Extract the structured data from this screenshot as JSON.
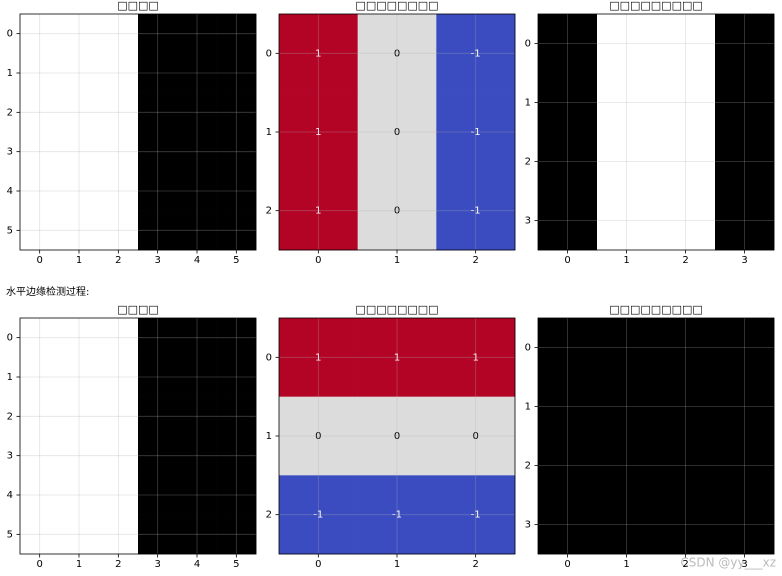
{
  "chart_data": [
    {
      "type": "heatmap",
      "title": "□□□□",
      "cmap": [
        "#000000",
        "#ffffff"
      ],
      "xticks": [
        0,
        1,
        2,
        3,
        4,
        5
      ],
      "yticks": [
        0,
        1,
        2,
        3,
        4,
        5
      ],
      "annotate": false,
      "values": [
        [
          10,
          10,
          10,
          0,
          0,
          0
        ],
        [
          10,
          10,
          10,
          0,
          0,
          0
        ],
        [
          10,
          10,
          10,
          0,
          0,
          0
        ],
        [
          10,
          10,
          10,
          0,
          0,
          0
        ],
        [
          10,
          10,
          10,
          0,
          0,
          0
        ],
        [
          10,
          10,
          10,
          0,
          0,
          0
        ]
      ]
    },
    {
      "type": "heatmap",
      "title": "□□□□□□□□",
      "cmap": [
        "#3b4cc0",
        "#dddcdc",
        "#b40426"
      ],
      "xticks": [
        0,
        1,
        2
      ],
      "yticks": [
        0,
        1,
        2
      ],
      "annotate": true,
      "values": [
        [
          1,
          0,
          -1
        ],
        [
          1,
          0,
          -1
        ],
        [
          1,
          0,
          -1
        ]
      ]
    },
    {
      "type": "heatmap",
      "title": "□□□□□□□□□",
      "cmap": [
        "#000000",
        "#ffffff"
      ],
      "xticks": [
        0,
        1,
        2,
        3
      ],
      "yticks": [
        0,
        1,
        2,
        3
      ],
      "annotate": false,
      "values": [
        [
          0,
          30,
          30,
          0
        ],
        [
          0,
          30,
          30,
          0
        ],
        [
          0,
          30,
          30,
          0
        ],
        [
          0,
          30,
          30,
          0
        ]
      ]
    },
    {
      "type": "heatmap",
      "title": "□□□□",
      "cmap": [
        "#000000",
        "#ffffff"
      ],
      "xticks": [
        0,
        1,
        2,
        3,
        4,
        5
      ],
      "yticks": [
        0,
        1,
        2,
        3,
        4,
        5
      ],
      "annotate": false,
      "values": [
        [
          10,
          10,
          10,
          0,
          0,
          0
        ],
        [
          10,
          10,
          10,
          0,
          0,
          0
        ],
        [
          10,
          10,
          10,
          0,
          0,
          0
        ],
        [
          10,
          10,
          10,
          0,
          0,
          0
        ],
        [
          10,
          10,
          10,
          0,
          0,
          0
        ],
        [
          10,
          10,
          10,
          0,
          0,
          0
        ]
      ]
    },
    {
      "type": "heatmap",
      "title": "□□□□□□□□",
      "cmap": [
        "#3b4cc0",
        "#dddcdc",
        "#b40426"
      ],
      "xticks": [
        0,
        1,
        2
      ],
      "yticks": [
        0,
        1,
        2
      ],
      "annotate": true,
      "values": [
        [
          1,
          1,
          1
        ],
        [
          0,
          0,
          0
        ],
        [
          -1,
          -1,
          -1
        ]
      ]
    },
    {
      "type": "heatmap",
      "title": "□□□□□□□□□",
      "cmap": [
        "#000000",
        "#ffffff"
      ],
      "xticks": [
        0,
        1,
        2,
        3
      ],
      "yticks": [
        0,
        1,
        2,
        3
      ],
      "annotate": false,
      "values": [
        [
          0,
          0,
          0,
          0
        ],
        [
          0,
          0,
          0,
          0
        ],
        [
          0,
          0,
          0,
          0
        ],
        [
          0,
          0,
          0,
          0
        ]
      ]
    }
  ],
  "section_label": "水平边缘检测过程:",
  "watermark": "CSDN @yy___xz"
}
